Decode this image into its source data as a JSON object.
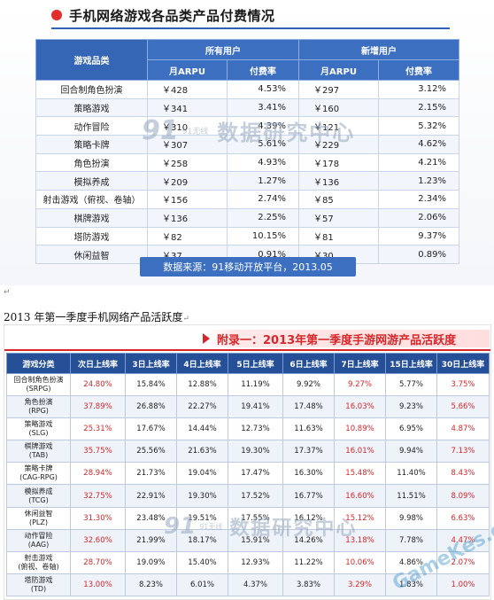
{
  "section1": {
    "title": "手机网络游戏各品类产品付费情况",
    "header": {
      "category": "游戏品类",
      "all_users": "所有用户",
      "new_users": "新增用户",
      "arpu": "月ARPU",
      "pay_rate": "付费率"
    },
    "rows": [
      {
        "name": "回合制角色扮演",
        "all_arpu": "￥428",
        "all_rate": "4.53%",
        "new_arpu": "￥297",
        "new_rate": "3.12%"
      },
      {
        "name": "策略游戏",
        "all_arpu": "￥341",
        "all_rate": "3.41%",
        "new_arpu": "￥160",
        "new_rate": "2.15%"
      },
      {
        "name": "动作冒险",
        "all_arpu": "￥310",
        "all_rate": "4.39%",
        "new_arpu": "￥121",
        "new_rate": "5.32%"
      },
      {
        "name": "策略卡牌",
        "all_arpu": "￥307",
        "all_rate": "5.61%",
        "new_arpu": "￥229",
        "new_rate": "4.62%"
      },
      {
        "name": "角色扮演",
        "all_arpu": "￥258",
        "all_rate": "4.93%",
        "new_arpu": "￥178",
        "new_rate": "4.21%"
      },
      {
        "name": "模拟养成",
        "all_arpu": "￥209",
        "all_rate": "1.27%",
        "new_arpu": "￥136",
        "new_rate": "1.23%"
      },
      {
        "name": "射击游戏（俯视、卷轴）",
        "all_arpu": "￥156",
        "all_rate": "2.74%",
        "new_arpu": "￥85",
        "new_rate": "2.34%"
      },
      {
        "name": "棋牌游戏",
        "all_arpu": "￥136",
        "all_rate": "2.25%",
        "new_arpu": "￥57",
        "new_rate": "2.06%"
      },
      {
        "name": "塔防游戏",
        "all_arpu": "￥82",
        "all_rate": "10.15%",
        "new_arpu": "￥81",
        "new_rate": "9.37%"
      },
      {
        "name": "休闲益智",
        "all_arpu": "￥37",
        "all_rate": "0.91%",
        "new_arpu": "￥30",
        "new_rate": "0.89%"
      }
    ],
    "source": "数据来源：91移动开放平台，2013.05"
  },
  "watermark": {
    "logo": "91",
    "small": "91无线",
    "big": "数据研究中心",
    "gamekes": "GameKes.com"
  },
  "para_mark": "↵",
  "section2": {
    "heading": "2013 年第一季度手机网络产品活跃度",
    "banner": "附录一：2013年第一季度手游网游产品活跃度",
    "header": [
      "游戏分类",
      "次日上线率",
      "3日上线率",
      "4日上线率",
      "5日上线率",
      "6日上线率",
      "7日上线率",
      "15日上线率",
      "30日上线率"
    ],
    "rows": [
      {
        "name": "回合制角色扮演",
        "sub": "(SRPG)",
        "vals": [
          "24.80%",
          "15.84%",
          "12.88%",
          "11.19%",
          "9.92%",
          "9.27%",
          "5.77%",
          "3.75%"
        ]
      },
      {
        "name": "角色扮演",
        "sub": "(RPG)",
        "vals": [
          "37.89%",
          "26.88%",
          "22.27%",
          "19.41%",
          "17.48%",
          "16.03%",
          "9.23%",
          "5.66%"
        ]
      },
      {
        "name": "策略游戏",
        "sub": "(SLG)",
        "vals": [
          "25.31%",
          "17.67%",
          "14.44%",
          "12.73%",
          "11.63%",
          "10.89%",
          "6.95%",
          "4.87%"
        ]
      },
      {
        "name": "棋牌游戏",
        "sub": "(TAB)",
        "vals": [
          "35.75%",
          "25.56%",
          "21.63%",
          "19.30%",
          "17.37%",
          "16.01%",
          "9.94%",
          "7.13%"
        ]
      },
      {
        "name": "策略卡牌",
        "sub": "(CAG-RPG)",
        "vals": [
          "28.94%",
          "21.73%",
          "19.04%",
          "17.47%",
          "16.30%",
          "15.48%",
          "11.40%",
          "8.43%"
        ]
      },
      {
        "name": "模拟养成",
        "sub": "(TCG)",
        "vals": [
          "32.75%",
          "22.91%",
          "19.30%",
          "17.52%",
          "16.77%",
          "16.60%",
          "11.51%",
          "8.09%"
        ]
      },
      {
        "name": "休闲益智",
        "sub": "(PLZ)",
        "vals": [
          "31.30%",
          "23.48%",
          "19.51%",
          "17.55%",
          "16.12%",
          "15.12%",
          "9.98%",
          "6.63%"
        ]
      },
      {
        "name": "动作冒险",
        "sub": "(AAG)",
        "vals": [
          "32.60%",
          "21.99%",
          "18.17%",
          "15.91%",
          "14.26%",
          "13.18%",
          "7.78%",
          "4.47%"
        ]
      },
      {
        "name": "射击游戏",
        "sub": "(俯视、卷轴)",
        "vals": [
          "28.70%",
          "19.09%",
          "15.40%",
          "12.93%",
          "11.22%",
          "10.06%",
          "4.86%",
          "2.07%"
        ]
      },
      {
        "name": "塔防游戏",
        "sub": "(TD)",
        "vals": [
          "13.00%",
          "8.23%",
          "6.01%",
          "4.37%",
          "3.83%",
          "3.29%",
          "1.83%",
          "1.00%"
        ]
      }
    ]
  }
}
